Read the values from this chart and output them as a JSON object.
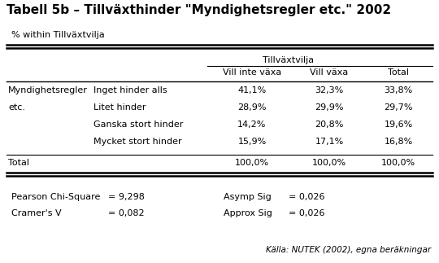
{
  "title": "Tabell 5b – Tillväxthinder \"Myndighetsregler etc.\" 2002",
  "subtitle": "% within Tillväxtvilja",
  "group_header": "Tillväxtvilja",
  "col_headers": [
    "Vill inte växa",
    "Vill växa",
    "Total"
  ],
  "row_label_main": [
    "Myndighetsregler",
    "etc."
  ],
  "row_labels_sub": [
    "Inget hinder alls",
    "Litet hinder",
    "Ganska stort hinder",
    "Mycket stort hinder"
  ],
  "data_rows": [
    [
      "41,1%",
      "32,3%",
      "33,8%"
    ],
    [
      "28,9%",
      "29,9%",
      "29,7%"
    ],
    [
      "14,2%",
      "20,8%",
      "19,6%"
    ],
    [
      "15,9%",
      "17,1%",
      "16,8%"
    ]
  ],
  "total_label": "Total",
  "total_row": [
    "100,0%",
    "100,0%",
    "100,0%"
  ],
  "stats": [
    [
      "Pearson Chi-Square",
      "= 9,298",
      "Asymp Sig",
      "= 0,026"
    ],
    [
      "Cramer's V",
      "= 0,082",
      "Approx Sig",
      "= 0,026"
    ]
  ],
  "source": "Källa: NUTEK (2002), egna beräkningar",
  "bg_color": "#ffffff",
  "text_color": "#000000",
  "title_fontsize": 11,
  "body_fontsize": 8.0
}
